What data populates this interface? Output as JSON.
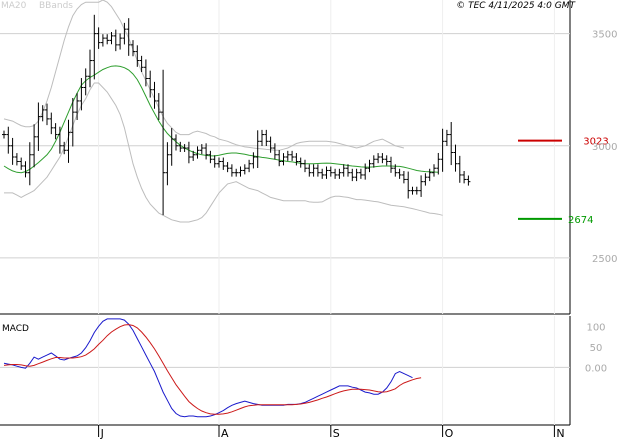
{
  "header": {
    "ma_label": "MA20",
    "bb_label": "BBands",
    "copyright": "© TEC 4/11/2025 4:0 GMT"
  },
  "price_panel": {
    "y_ticks": [
      "3500",
      "3000",
      "2500"
    ],
    "y_tick_values": [
      3500,
      3000,
      2500
    ],
    "ylim": [
      2250,
      3650
    ],
    "resistance": {
      "label": "3023",
      "value": 3023,
      "color": "#cc0000"
    },
    "support": {
      "label": "2674",
      "value": 2674,
      "color": "#009900"
    }
  },
  "macd_panel": {
    "label": "MACD",
    "y_ticks": [
      "100",
      "50",
      "0.00"
    ],
    "y_tick_values": [
      100,
      50,
      0
    ],
    "ylim": [
      -140,
      125
    ]
  },
  "x_axis": {
    "labels": [
      "J",
      "A",
      "S",
      "O",
      "N"
    ],
    "label_index": [
      22,
      50,
      76,
      102,
      128
    ]
  },
  "colors": {
    "ma": "#2e9e2e",
    "bb": "#bdbdbd",
    "bars": "#000000",
    "macd": "#1a1acc",
    "signal": "#cc1a1a",
    "grid": "#d0d0d0",
    "header_text": "#cccccc"
  },
  "chart_data": [
    {
      "type": "ohlc",
      "title": "",
      "series": [
        {
          "name": "MA20",
          "values": [
            2910,
            2898,
            2888,
            2882,
            2880,
            2885,
            2895,
            2910,
            2925,
            2942,
            2960,
            2985,
            3020,
            3060,
            3105,
            3150,
            3195,
            3235,
            3270,
            3290,
            3305,
            3315,
            3328,
            3340,
            3348,
            3355,
            3356,
            3354,
            3348,
            3338,
            3320,
            3295,
            3260,
            3220,
            3180,
            3145,
            3110,
            3080,
            3055,
            3035,
            3018,
            3002,
            2990,
            2980,
            2972,
            2965,
            2960,
            2957,
            2955,
            2955,
            2958,
            2962,
            2966,
            2968,
            2968,
            2965,
            2962,
            2958,
            2955,
            2952,
            2948,
            2946,
            2943,
            2940,
            2936,
            2933,
            2930,
            2928,
            2925,
            2922,
            2920,
            2920,
            2920,
            2921,
            2922,
            2923,
            2922,
            2920,
            2918,
            2915,
            2912,
            2910,
            2908,
            2906,
            2905,
            2905,
            2906,
            2908,
            2910,
            2910,
            2910,
            2909,
            2908,
            2905,
            2900,
            2895,
            2890,
            2887,
            2885,
            2884,
            2883,
            2882
          ]
        },
        {
          "name": "BBands",
          "values": [
            2790,
            2790,
            2790,
            2780,
            2770,
            2780,
            2790,
            2800,
            2820,
            2840,
            2860,
            2890,
            2920,
            2950,
            2990,
            3040,
            3090,
            3140,
            3180,
            3210,
            3250,
            3280,
            3280,
            3260,
            3240,
            3210,
            3180,
            3140,
            3080,
            3000,
            2920,
            2860,
            2810,
            2770,
            2740,
            2720,
            2700,
            2690,
            2680,
            2670,
            2665,
            2660,
            2660,
            2660,
            2665,
            2670,
            2680,
            2700,
            2730,
            2760,
            2790,
            2810,
            2830,
            2835,
            2840,
            2830,
            2820,
            2810,
            2805,
            2800,
            2790,
            2780,
            2770,
            2765,
            2760,
            2755,
            2755,
            2755,
            2755,
            2755,
            2755,
            2750,
            2748,
            2748,
            2750,
            2760,
            2770,
            2775,
            2775,
            2772,
            2770,
            2765,
            2760,
            2760,
            2758,
            2755,
            2752,
            2750,
            2745,
            2740,
            2735,
            2733,
            2730,
            2728,
            2724,
            2720,
            2715,
            2710,
            2705,
            2700,
            2698,
            2695,
            2690
          ]
        },
        {
          "name": "BBands",
          "values": [
            3120,
            3115,
            3110,
            3100,
            3090,
            3085,
            3085,
            3090,
            3110,
            3150,
            3200,
            3260,
            3330,
            3400,
            3470,
            3530,
            3580,
            3610,
            3630,
            3640,
            3640,
            3640,
            3640,
            3650,
            3640,
            3620,
            3590,
            3560,
            3520,
            3480,
            3430,
            3380,
            3330,
            3290,
            3250,
            3210,
            3170,
            3130,
            3100,
            3080,
            3060,
            3050,
            3050,
            3050,
            3060,
            3065,
            3060,
            3055,
            3045,
            3040,
            3030,
            3025,
            3020,
            3012,
            3005,
            3000,
            2995,
            2993,
            2990,
            2988,
            2986,
            2984,
            2982,
            2980,
            2980,
            2985,
            2990,
            3000,
            3010,
            3015,
            3018,
            3020,
            3020,
            3020,
            3020,
            3020,
            3018,
            3015,
            3010,
            3005,
            3000,
            2995,
            2990,
            2995,
            3000,
            3010,
            3020,
            3025,
            3030,
            3020,
            3010,
            3000,
            2995,
            2990
          ]
        }
      ],
      "ohlc_close": [
        3050,
        3000,
        2950,
        2930,
        2910,
        2880,
        2960,
        3040,
        3130,
        3160,
        3120,
        3080,
        3050,
        3000,
        2980,
        3060,
        3150,
        3200,
        3260,
        3310,
        3380,
        3500,
        3460,
        3480,
        3470,
        3490,
        3450,
        3480,
        3520,
        3450,
        3420,
        3380,
        3350,
        3300,
        3250,
        3200,
        3150,
        2880,
        2960,
        3030,
        3000,
        2990,
        2990,
        2950,
        2960,
        2980,
        2990,
        2960,
        2940,
        2920,
        2930,
        2910,
        2900,
        2880,
        2880,
        2890,
        2900,
        2920,
        2950,
        3020,
        3050,
        3020,
        2990,
        2960,
        2930,
        2950,
        2960,
        2950,
        2930,
        2920,
        2900,
        2880,
        2900,
        2880,
        2870,
        2890,
        2880,
        2870,
        2880,
        2900,
        2880,
        2860,
        2880,
        2870,
        2900,
        2920,
        2940,
        2950,
        2940,
        2930,
        2900,
        2880,
        2870,
        2850,
        2800,
        2800,
        2800,
        2840,
        2860,
        2880,
        2900,
        2940,
        3020,
        3050,
        2970,
        2920,
        2870,
        2850,
        2840
      ],
      "x_labels": [
        "J",
        "A",
        "S",
        "O",
        "N"
      ],
      "ylim": [
        2250,
        3650
      ],
      "levels": [
        3023,
        2674
      ]
    },
    {
      "type": "line",
      "title": "MACD",
      "series": [
        {
          "name": "MACD",
          "values": [
            10,
            8,
            6,
            3,
            0,
            -2,
            10,
            25,
            20,
            25,
            30,
            35,
            28,
            20,
            18,
            22,
            25,
            28,
            35,
            48,
            65,
            85,
            100,
            112,
            118,
            118,
            118,
            118,
            115,
            105,
            90,
            70,
            50,
            30,
            10,
            -10,
            -35,
            -60,
            -80,
            -100,
            -112,
            -118,
            -120,
            -118,
            -118,
            -120,
            -120,
            -120,
            -118,
            -115,
            -110,
            -105,
            -98,
            -92,
            -88,
            -85,
            -82,
            -85,
            -88,
            -90,
            -92,
            -92,
            -92,
            -92,
            -92,
            -92,
            -90,
            -90,
            -90,
            -88,
            -85,
            -80,
            -75,
            -70,
            -65,
            -60,
            -55,
            -50,
            -45,
            -45,
            -45,
            -48,
            -50,
            -55,
            -60,
            -62,
            -65,
            -65,
            -60,
            -50,
            -35,
            -15,
            -10,
            -15,
            -20,
            -25
          ]
        },
        {
          "name": "Signal",
          "values": [
            5,
            6,
            7,
            7,
            6,
            4,
            3,
            5,
            9,
            13,
            17,
            21,
            24,
            24,
            23,
            23,
            23,
            24,
            26,
            30,
            37,
            45,
            56,
            66,
            77,
            86,
            93,
            99,
            103,
            104,
            102,
            96,
            86,
            74,
            60,
            45,
            28,
            10,
            -8,
            -25,
            -42,
            -56,
            -70,
            -83,
            -92,
            -100,
            -106,
            -110,
            -113,
            -114,
            -114,
            -113,
            -111,
            -108,
            -104,
            -100,
            -96,
            -93,
            -92,
            -91,
            -91,
            -91,
            -91,
            -91,
            -91,
            -91,
            -91,
            -91,
            -90,
            -89,
            -87,
            -85,
            -82,
            -79,
            -75,
            -72,
            -68,
            -64,
            -60,
            -57,
            -55,
            -53,
            -53,
            -53,
            -54,
            -55,
            -57,
            -59,
            -60,
            -59,
            -56,
            -52,
            -44,
            -38,
            -34,
            -30,
            -27,
            -25
          ]
        }
      ],
      "x_labels": [
        "J",
        "A",
        "S",
        "O",
        "N"
      ],
      "y_ticks": [
        100,
        50,
        0
      ],
      "ylim": [
        -140,
        125
      ]
    }
  ]
}
